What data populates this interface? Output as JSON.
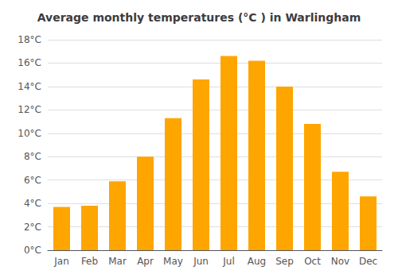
{
  "chart_data": {
    "type": "bar",
    "title": "Average monthly temperatures (°C ) in Warlingham",
    "categories": [
      "Jan",
      "Feb",
      "Mar",
      "Apr",
      "May",
      "Jun",
      "Jul",
      "Aug",
      "Sep",
      "Oct",
      "Nov",
      "Dec"
    ],
    "values": [
      3.7,
      3.8,
      5.9,
      8.0,
      11.3,
      14.6,
      16.6,
      16.2,
      14.0,
      10.8,
      6.7,
      4.6
    ],
    "color": "#FFA500",
    "ylim": [
      0,
      18
    ],
    "yticks": [
      {
        "value": 0,
        "label": "0°C"
      },
      {
        "value": 2,
        "label": "2°C"
      },
      {
        "value": 4,
        "label": "4°C"
      },
      {
        "value": 6,
        "label": "6°C"
      },
      {
        "value": 8,
        "label": "8°C"
      },
      {
        "value": 10,
        "label": "10°C"
      },
      {
        "value": 12,
        "label": "12°C"
      },
      {
        "value": 14,
        "label": "14°C"
      },
      {
        "value": 16,
        "label": "16°C"
      },
      {
        "value": 18,
        "label": "18°C"
      }
    ],
    "grid": true
  }
}
